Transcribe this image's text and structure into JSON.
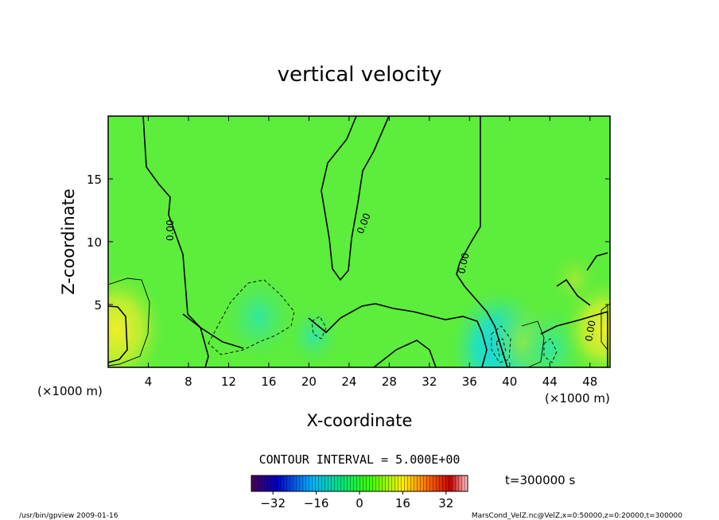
{
  "chart_data": {
    "type": "heatmap",
    "title": "vertical velocity",
    "xlabel": "X-coordinate",
    "ylabel": "Z-coordinate",
    "x_unit_label": "(×1000 m)",
    "y_unit_label": "(×1000 m)",
    "xlim": [
      0,
      50
    ],
    "ylim": [
      0,
      20
    ],
    "x_ticks": [
      4,
      8,
      12,
      16,
      20,
      24,
      28,
      32,
      36,
      40,
      44,
      48
    ],
    "y_ticks": [
      5,
      10,
      15
    ],
    "contour_interval_text": "CONTOUR INTERVAL = 5.000E+00",
    "time_text": "t=300000 s",
    "colorbar": {
      "range": [
        -40,
        40
      ],
      "ticks": [
        -32,
        -16,
        0,
        16,
        32
      ],
      "colormap": [
        "#4b0055",
        "#0000c8",
        "#00b4ff",
        "#00e678",
        "#3cff00",
        "#fff000",
        "#ff6400",
        "#c80000",
        "#ffc8c8"
      ]
    },
    "contour_labels": [
      "0.00",
      "0.00",
      "0.00",
      "0.00"
    ],
    "anomalies": [
      {
        "x": 0.8,
        "z": 3.0,
        "value": 10,
        "sign": "positive"
      },
      {
        "x": 15.0,
        "z": 4.0,
        "value": -6,
        "sign": "negative"
      },
      {
        "x": 20.5,
        "z": 2.5,
        "value": -3,
        "sign": "negative"
      },
      {
        "x": 39.0,
        "z": 1.5,
        "value": -10,
        "sign": "negative"
      },
      {
        "x": 41.5,
        "z": 2.0,
        "value": 6,
        "sign": "positive"
      },
      {
        "x": 44.0,
        "z": 1.5,
        "value": -6,
        "sign": "negative"
      },
      {
        "x": 49.5,
        "z": 3.0,
        "value": 8,
        "sign": "positive"
      },
      {
        "x": 46.5,
        "z": 7.0,
        "value": 3,
        "sign": "positive"
      }
    ],
    "grid": false
  },
  "footer": {
    "left": "/usr/bin/gpview   2009-01-16",
    "right": "MarsCond_VelZ.nc@VelZ,x=0:50000,z=0:20000,t=300000"
  }
}
